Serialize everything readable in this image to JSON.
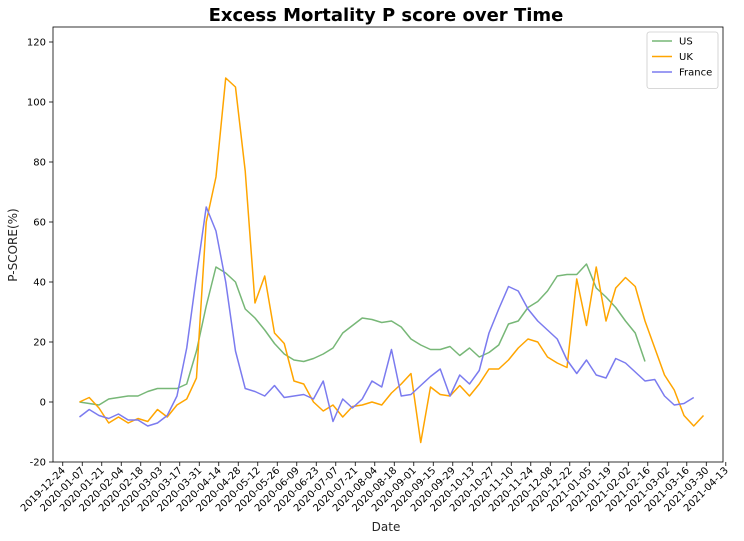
{
  "chart_data": {
    "type": "line",
    "title": "Excess Mortality P score over Time",
    "xlabel": "Date",
    "ylabel": "P-SCORE(%)",
    "ylim": [
      -20,
      125
    ],
    "yticks": [
      -20,
      0,
      20,
      40,
      60,
      80,
      100,
      120
    ],
    "xlim": [
      "2019-12-17",
      "2021-04-11"
    ],
    "xticks": [
      "2019-12-24",
      "2020-01-07",
      "2020-01-21",
      "2020-02-04",
      "2020-02-18",
      "2020-03-03",
      "2020-03-17",
      "2020-03-31",
      "2020-04-14",
      "2020-04-28",
      "2020-05-12",
      "2020-05-26",
      "2020-06-09",
      "2020-06-23",
      "2020-07-07",
      "2020-07-21",
      "2020-08-04",
      "2020-08-18",
      "2020-09-01",
      "2020-09-15",
      "2020-09-29",
      "2020-10-13",
      "2020-10-27",
      "2020-11-10",
      "2020-11-24",
      "2020-12-08",
      "2020-12-22",
      "2021-01-05",
      "2021-01-19",
      "2021-02-02",
      "2021-02-16",
      "2021-03-02",
      "2021-03-16",
      "2021-03-30",
      "2021-04-13"
    ],
    "grid": false,
    "legend": "top-right",
    "series": [
      {
        "name": "US",
        "color": "#77b777",
        "start": "2020-01-05",
        "step_days": 7,
        "values": [
          0,
          -0.5,
          -1,
          1,
          1.5,
          2,
          2,
          3.5,
          4.5,
          4.5,
          4.5,
          6,
          17,
          32,
          45,
          43,
          40,
          31,
          28,
          24,
          19.5,
          16,
          14,
          13.5,
          14.5,
          16,
          18,
          23,
          25.5,
          28,
          27.5,
          26.5,
          27,
          25,
          21,
          19,
          17.5,
          17.5,
          18.5,
          15.5,
          18,
          15,
          16.5,
          19,
          26,
          27,
          31.5,
          33.5,
          37,
          42,
          42.5,
          42.5,
          46,
          38,
          35,
          31.5,
          27,
          23,
          13.5
        ]
      },
      {
        "name": "UK",
        "color": "#ffa500",
        "start": "2020-01-05",
        "step_days": 7,
        "values": [
          0,
          1.5,
          -2,
          -7,
          -5,
          -7,
          -5.5,
          -6.5,
          -2.5,
          -5,
          -1,
          1,
          8,
          60,
          75,
          108,
          105,
          77,
          33,
          42,
          23,
          19.5,
          7,
          6,
          0,
          -3,
          -1,
          -5,
          -1.5,
          -1,
          0,
          -1,
          3,
          6,
          9.5,
          -13.5,
          5,
          2.5,
          2,
          5.5,
          2,
          6,
          11,
          11,
          14,
          18,
          21,
          20,
          15,
          13,
          11.5,
          41,
          25.5,
          45,
          27,
          38,
          41.5,
          38.5,
          27,
          18,
          9,
          4,
          -4.5,
          -8,
          -4.5
        ]
      },
      {
        "name": "France",
        "color": "#7b7bef",
        "start": "2020-01-05",
        "step_days": 7,
        "values": [
          -5,
          -2.5,
          -4.5,
          -5.5,
          -4,
          -6,
          -6,
          -8,
          -7,
          -4.5,
          2,
          18,
          42,
          65,
          57,
          40,
          17,
          4.5,
          3.5,
          2,
          5.5,
          1.5,
          2,
          2.5,
          1,
          7,
          -6.5,
          1,
          -2,
          1,
          7,
          5,
          17.5,
          2,
          2.5,
          5.5,
          8.5,
          11,
          2,
          9,
          6,
          10.5,
          23,
          31,
          38.5,
          37,
          31,
          27,
          24,
          21,
          14,
          9.5,
          14,
          9,
          8,
          14.5,
          13,
          10,
          7,
          7.5,
          2,
          -1,
          -0.5,
          1.5
        ]
      }
    ]
  }
}
